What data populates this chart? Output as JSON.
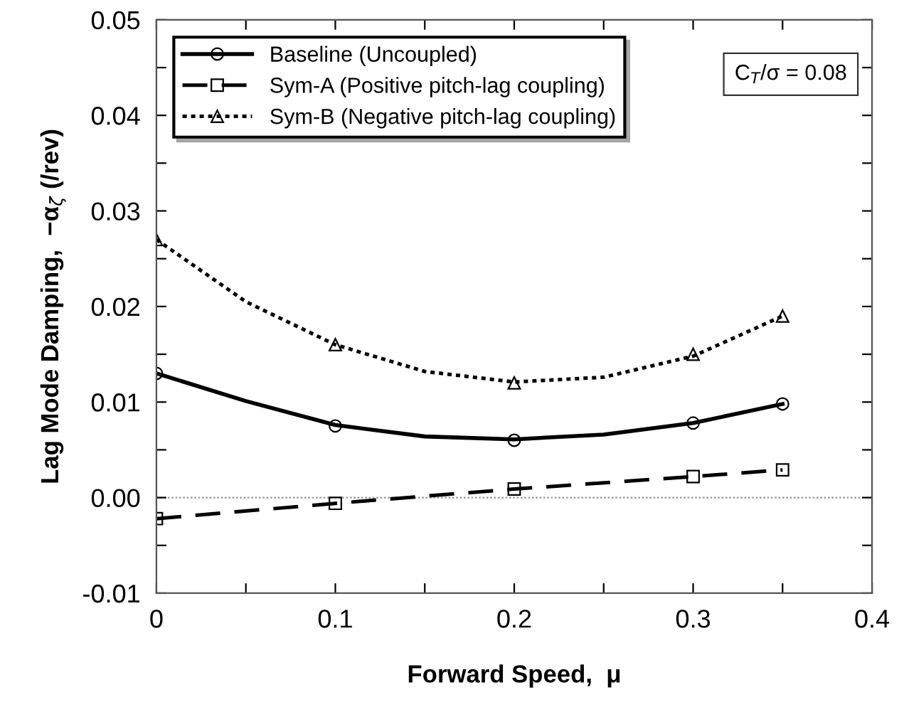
{
  "chart_data": {
    "type": "line",
    "xlabel": "Forward Speed,  μ",
    "ylabel": "Lag Mode Damping,  −α$_{ζ}$ (/rev)",
    "x": [
      0,
      0.1,
      0.2,
      0.3,
      0.35
    ],
    "series": [
      {
        "name": "Baseline (Uncoupled)",
        "type": "scatter",
        "color": "#000000",
        "values": [
          0.013,
          0.0075,
          0.006,
          0.0078,
          0.0098
        ],
        "marker": "circle",
        "line_style": "solid"
      },
      {
        "name": "Sym-A (Positive pitch-lag coupling)",
        "type": "scatter",
        "color": "#000000",
        "values": [
          -0.0022,
          -0.0006,
          0.0009,
          0.0022,
          0.0029
        ],
        "marker": "square",
        "line_style": "dashed"
      },
      {
        "name": "Sym-B (Negative pitch-lag coupling)",
        "type": "scatter",
        "color": "#000000",
        "values": [
          0.027,
          0.016,
          0.012,
          0.015,
          0.019
        ],
        "marker": "triangle",
        "line_style": "dotted"
      },
      {
        "color": "#000000",
        "x": [
          0,
          0.05,
          0.1,
          0.15,
          0.2,
          0.25,
          0.3,
          0.35
        ],
        "values": [
          0.013,
          0.0101,
          0.0076,
          0.0064,
          0.0061,
          0.0066,
          0.0078,
          0.0098
        ],
        "line_style": "solid"
      },
      {
        "color": "#000000",
        "values": [
          -0.0022,
          -0.0006,
          0.0009,
          0.0022,
          0.0029
        ],
        "line_style": "dashed"
      },
      {
        "color": "#000000",
        "x": [
          0,
          0.05,
          0.1,
          0.15,
          0.2,
          0.25,
          0.3,
          0.35
        ],
        "values": [
          0.027,
          0.0205,
          0.016,
          0.0132,
          0.0121,
          0.0126,
          0.0148,
          0.019
        ],
        "line_style": "dotted"
      }
    ],
    "xlim": [
      0,
      0.4
    ],
    "xticks": [
      0,
      {
        "value": 0.05,
        "label": null
      },
      0.1,
      {
        "value": 0.15,
        "label": null
      },
      0.2,
      {
        "value": 0.25,
        "label": null
      },
      0.3,
      {
        "value": 0.35,
        "label": null
      },
      0.4
    ],
    "ylim": [
      -0.01,
      0.05
    ],
    "yticks": [
      {
        "value": -0.01,
        "label": "-0.01"
      },
      {
        "value": -0.005,
        "label": null
      },
      {
        "value": 0,
        "label": "0.00"
      },
      {
        "value": 0.005,
        "label": null
      },
      0.01,
      {
        "value": 0.015,
        "label": null
      },
      0.02,
      {
        "value": 0.025,
        "label": null
      },
      0.03,
      {
        "value": 0.035,
        "label": null
      },
      0.04,
      {
        "value": 0.045,
        "label": null
      },
      0.05
    ],
    "ref_lines": [
      {
        "axis": "y",
        "value": 0,
        "color": "#999999",
        "line_style": "dotted"
      }
    ],
    "annotations": [
      "C$_{T}$/σ = 0.08"
    ],
    "legend": "top left",
    "grid": false
  }
}
